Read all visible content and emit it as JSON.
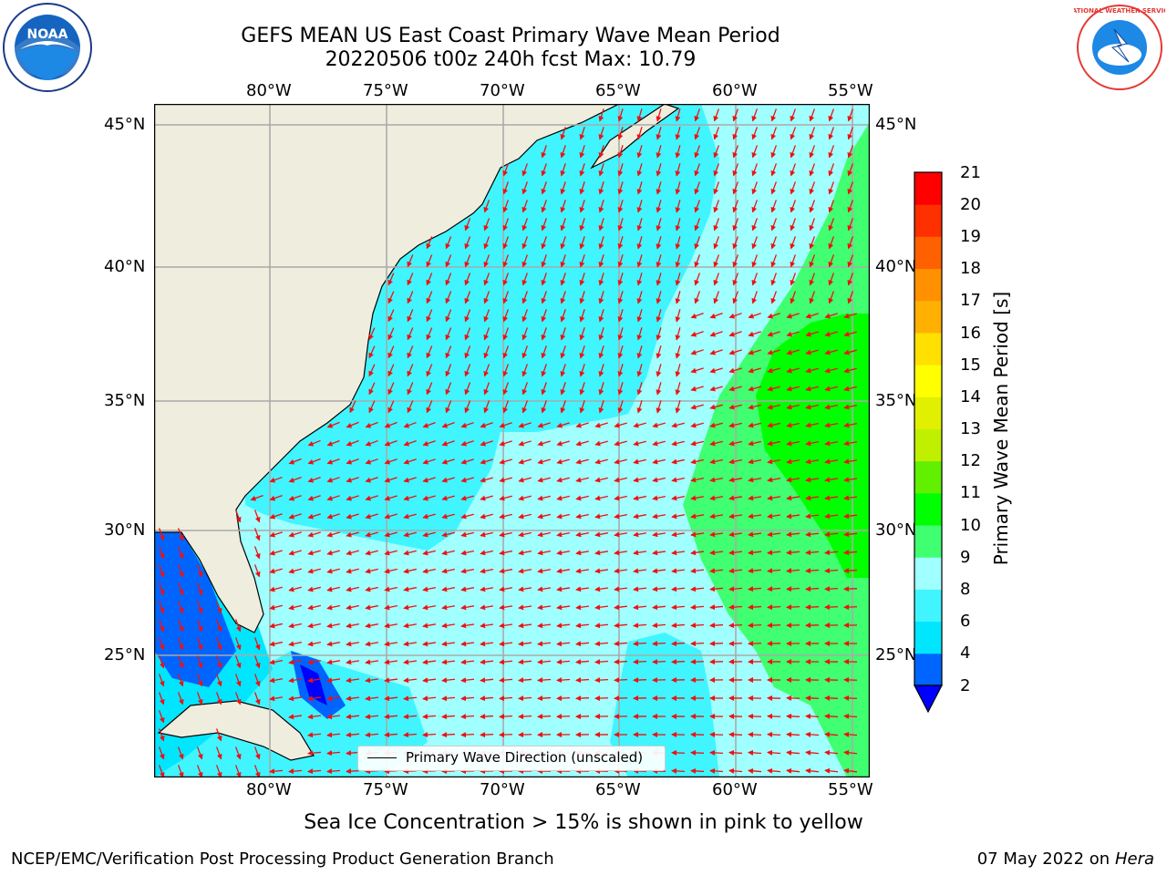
{
  "title": {
    "line1": "GEFS MEAN US East Coast Primary Wave Mean Period",
    "line2": "20220506 t00z 240h fcst   Max: 10.79"
  },
  "axes": {
    "lon_labels": [
      "80°W",
      "75°W",
      "70°W",
      "65°W",
      "60°W",
      "55°W"
    ],
    "lat_labels": [
      "45°N",
      "40°N",
      "35°N",
      "30°N",
      "25°N"
    ]
  },
  "colorbar": {
    "label": "Primary Wave Mean Period [s]",
    "ticks": [
      "21",
      "20",
      "19",
      "18",
      "17",
      "16",
      "15",
      "14",
      "13",
      "12",
      "11",
      "10",
      "9",
      "8",
      "6",
      "4",
      "2"
    ],
    "colors_bottom_to_top": [
      "#0064ff",
      "#00e6ff",
      "#40f5ff",
      "#a0ffff",
      "#40ff70",
      "#00ff00",
      "#60f000",
      "#c0f000",
      "#e0f000",
      "#ffff00",
      "#ffe000",
      "#ffb000",
      "#ff9000",
      "#ff6000",
      "#ff3000",
      "#ff0000"
    ],
    "under_color": "#0000ff"
  },
  "legend": {
    "text": "Primary Wave Direction (unscaled)"
  },
  "note": "Sea Ice Concentration > 15% is shown in pink to yellow",
  "footer": {
    "left": "NCEP/EMC/Verification Post Processing Product Generation Branch",
    "date": "07 May 2022 on",
    "machine": "Hera"
  },
  "logos": {
    "left": "NOAA",
    "right": "NATIONAL WEATHER SERVICE"
  },
  "colors": {
    "land": "#efedde",
    "arrows": "#ee1111",
    "grid": "#aaaaaa"
  }
}
